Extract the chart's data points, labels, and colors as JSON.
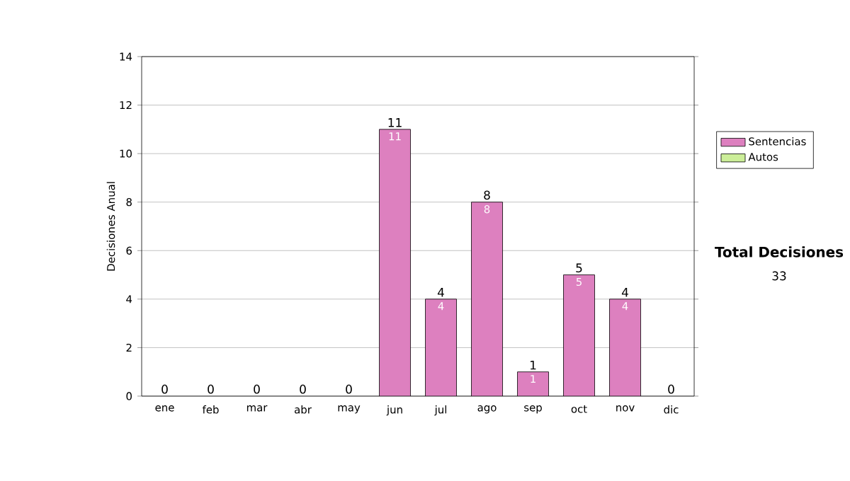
{
  "chart_data": {
    "type": "bar",
    "stacked": true,
    "ylabel": "Decisiones Anual",
    "categories": [
      "ene",
      "feb",
      "mar",
      "abr",
      "may",
      "jun",
      "jul",
      "ago",
      "sep",
      "oct",
      "nov",
      "dic"
    ],
    "series": [
      {
        "name": "Sentencias",
        "color": "#dd80bf",
        "values": [
          0,
          0,
          0,
          0,
          0,
          11,
          4,
          8,
          1,
          5,
          4,
          0
        ],
        "value_labels": [
          null,
          null,
          null,
          null,
          null,
          "11",
          "4",
          "8",
          "1",
          "5",
          "4",
          null
        ]
      },
      {
        "name": "Autos",
        "color": "#ccee99",
        "values": [
          0,
          0,
          0,
          0,
          0,
          0,
          0,
          0,
          0,
          0,
          0,
          0
        ]
      }
    ],
    "totals": [
      "0",
      "0",
      "0",
      "0",
      "0",
      "11",
      "4",
      "8",
      "1",
      "5",
      "4",
      "0"
    ],
    "ylim": [
      0,
      14
    ],
    "yticks": [
      0,
      2,
      4,
      6,
      8,
      10,
      12,
      14
    ],
    "grid": "y",
    "legend": "right",
    "annotations": [
      "Total Decisiones",
      "33"
    ]
  }
}
